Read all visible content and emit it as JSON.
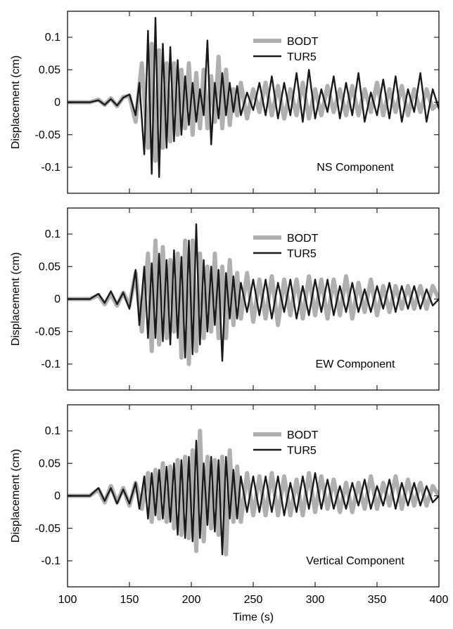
{
  "colors": {
    "BODT": "#b0b0b0",
    "TUR5": "#1a1a1a"
  },
  "chart_data": [
    {
      "type": "line",
      "annotation": "NS Component",
      "ylabel": "Displacement (cm)",
      "xlim": [
        100,
        400
      ],
      "ylim": [
        -0.14,
        0.14
      ],
      "yticks": [
        -0.1,
        -0.05,
        0,
        0.05,
        0.1
      ],
      "ytick_labels": [
        "-0.1",
        "-0.05",
        "0",
        "0.05",
        "0.1"
      ],
      "legend": "top-right",
      "grid": false,
      "series": [
        {
          "name": "BODT",
          "x": [
            100,
            118,
            125,
            130,
            135,
            140,
            145,
            150,
            155,
            160,
            165,
            168,
            171,
            174,
            177,
            180,
            183,
            186,
            189,
            192,
            195,
            198,
            201,
            204,
            207,
            210,
            213,
            216,
            219,
            222,
            225,
            228,
            231,
            234,
            237,
            240,
            245,
            250,
            255,
            260,
            265,
            270,
            275,
            280,
            285,
            290,
            295,
            300,
            305,
            310,
            315,
            320,
            325,
            330,
            335,
            340,
            345,
            350,
            355,
            360,
            365,
            370,
            375,
            380,
            385,
            390,
            395,
            400
          ],
          "y": [
            0,
            0,
            0.004,
            -0.004,
            0.006,
            -0.006,
            0.008,
            0.01,
            -0.03,
            0.06,
            -0.07,
            0.09,
            -0.09,
            0.08,
            -0.07,
            0.06,
            -0.06,
            0.06,
            -0.05,
            0.05,
            -0.04,
            0.06,
            -0.05,
            0.045,
            -0.04,
            0.05,
            -0.04,
            0.04,
            -0.03,
            0.07,
            -0.04,
            0.05,
            -0.035,
            0.02,
            -0.02,
            0.03,
            -0.025,
            0.02,
            -0.015,
            0.03,
            -0.02,
            0.025,
            -0.025,
            0.02,
            -0.02,
            0.03,
            -0.025,
            0.02,
            -0.02,
            0.025,
            -0.015,
            0.02,
            -0.02,
            0.025,
            -0.02,
            0.02,
            -0.015,
            0.03,
            -0.02,
            0.02,
            -0.015,
            0.025,
            -0.02,
            0.02,
            -0.015,
            0.02,
            -0.01,
            0
          ]
        },
        {
          "name": "TUR5",
          "x": [
            100,
            118,
            125,
            130,
            135,
            140,
            145,
            150,
            155,
            158,
            162,
            165,
            168,
            171,
            174,
            177,
            180,
            183,
            186,
            189,
            192,
            195,
            198,
            201,
            204,
            207,
            210,
            213,
            216,
            219,
            222,
            225,
            228,
            231,
            234,
            237,
            240,
            245,
            250,
            255,
            260,
            265,
            270,
            275,
            280,
            285,
            290,
            295,
            300,
            305,
            310,
            315,
            320,
            325,
            330,
            335,
            340,
            345,
            350,
            355,
            360,
            365,
            370,
            375,
            380,
            385,
            390,
            395,
            400
          ],
          "y": [
            0,
            0,
            0.003,
            -0.004,
            0.005,
            -0.005,
            0.007,
            0.012,
            -0.02,
            0.03,
            -0.08,
            0.11,
            -0.11,
            0.13,
            -0.115,
            0.09,
            -0.07,
            0.085,
            -0.06,
            0.065,
            -0.05,
            0.04,
            -0.035,
            0.03,
            -0.03,
            0.02,
            -0.02,
            0.095,
            -0.065,
            0.03,
            -0.025,
            0.045,
            -0.02,
            0.03,
            -0.015,
            0.025,
            -0.02,
            0.015,
            -0.012,
            0.03,
            -0.02,
            0.04,
            -0.025,
            0.03,
            -0.02,
            0.045,
            -0.03,
            0.05,
            -0.025,
            0.02,
            -0.015,
            0.04,
            -0.025,
            0.03,
            -0.02,
            0.045,
            -0.03,
            0.015,
            -0.02,
            0.035,
            -0.025,
            0.04,
            -0.03,
            0.02,
            -0.015,
            0.045,
            -0.03,
            0.02,
            -0.01
          ]
        }
      ]
    },
    {
      "type": "line",
      "annotation": "EW Component",
      "ylabel": "Displacement (cm)",
      "xlim": [
        100,
        400
      ],
      "ylim": [
        -0.14,
        0.14
      ],
      "yticks": [
        -0.1,
        -0.05,
        0,
        0.05,
        0.1
      ],
      "ytick_labels": [
        "-0.1",
        "-0.05",
        "0",
        "0.05",
        "0.1"
      ],
      "legend": "top-right",
      "grid": false,
      "series": [
        {
          "name": "BODT",
          "x": [
            100,
            118,
            125,
            130,
            135,
            140,
            145,
            150,
            155,
            160,
            165,
            168,
            171,
            174,
            177,
            180,
            183,
            186,
            189,
            192,
            195,
            198,
            201,
            204,
            207,
            210,
            213,
            216,
            219,
            222,
            225,
            228,
            231,
            234,
            237,
            240,
            245,
            250,
            255,
            260,
            265,
            270,
            275,
            280,
            285,
            290,
            295,
            300,
            305,
            310,
            315,
            320,
            325,
            330,
            335,
            340,
            345,
            350,
            355,
            360,
            365,
            370,
            375,
            380,
            385,
            390,
            395,
            400
          ],
          "y": [
            0,
            0,
            0.006,
            -0.008,
            0.008,
            -0.01,
            0.01,
            -0.01,
            0.04,
            -0.05,
            0.07,
            -0.08,
            0.09,
            -0.07,
            0.08,
            -0.06,
            0.06,
            -0.05,
            0.07,
            -0.09,
            0.09,
            -0.1,
            0.09,
            -0.08,
            0.07,
            -0.06,
            0.05,
            -0.05,
            0.07,
            -0.06,
            0.05,
            -0.06,
            0.06,
            -0.04,
            0.04,
            -0.03,
            0.04,
            -0.035,
            0.03,
            -0.03,
            0.035,
            -0.04,
            0.03,
            -0.025,
            0.03,
            -0.03,
            0.035,
            -0.025,
            0.03,
            -0.03,
            0.03,
            -0.025,
            0.035,
            -0.03,
            0.025,
            -0.02,
            0.03,
            -0.025,
            0.02,
            -0.02,
            0.02,
            -0.015,
            0.02,
            -0.015,
            0.02,
            -0.015,
            0.02,
            0
          ]
        },
        {
          "name": "TUR5",
          "x": [
            100,
            118,
            125,
            130,
            135,
            140,
            145,
            150,
            155,
            158,
            162,
            165,
            168,
            171,
            174,
            177,
            180,
            183,
            186,
            189,
            192,
            195,
            198,
            201,
            204,
            207,
            210,
            213,
            216,
            219,
            222,
            225,
            228,
            231,
            234,
            237,
            240,
            245,
            250,
            255,
            260,
            265,
            270,
            275,
            280,
            285,
            290,
            295,
            300,
            305,
            310,
            315,
            320,
            325,
            330,
            335,
            340,
            345,
            350,
            355,
            360,
            365,
            370,
            375,
            380,
            385,
            390,
            395,
            400
          ],
          "y": [
            0,
            0,
            0.008,
            -0.006,
            0.012,
            -0.008,
            0.01,
            -0.015,
            0.045,
            -0.04,
            0.05,
            -0.06,
            0.055,
            -0.06,
            0.07,
            -0.065,
            0.06,
            -0.07,
            0.075,
            -0.06,
            0.065,
            -0.09,
            0.09,
            -0.085,
            0.115,
            -0.07,
            0.06,
            -0.05,
            0.05,
            -0.04,
            0.045,
            -0.095,
            0.04,
            -0.03,
            0.035,
            -0.03,
            0.025,
            -0.02,
            0.03,
            -0.025,
            0.03,
            -0.03,
            0.025,
            -0.02,
            0.03,
            -0.03,
            0.02,
            -0.025,
            0.03,
            -0.02,
            0.03,
            -0.025,
            0.02,
            -0.02,
            0.025,
            -0.02,
            0.015,
            -0.02,
            0.02,
            -0.015,
            0.025,
            -0.02,
            0.02,
            -0.015,
            0.02,
            -0.015,
            0.015,
            -0.01,
            0
          ]
        }
      ]
    },
    {
      "type": "line",
      "annotation": "Vertical Component",
      "ylabel": "Displacement (cm)",
      "xlabel": "Time (s)",
      "xlim": [
        100,
        400
      ],
      "ylim": [
        -0.14,
        0.14
      ],
      "xticks": [
        100,
        150,
        200,
        250,
        300,
        350,
        400
      ],
      "xtick_labels": [
        "100",
        "150",
        "200",
        "250",
        "300",
        "350",
        "400"
      ],
      "yticks": [
        -0.1,
        -0.05,
        0,
        0.05,
        0.1
      ],
      "ytick_labels": [
        "-0.1",
        "-0.05",
        "0",
        "0.05",
        "0.1"
      ],
      "legend": "top-right",
      "grid": false,
      "series": [
        {
          "name": "BODT",
          "x": [
            100,
            118,
            125,
            130,
            135,
            140,
            145,
            150,
            155,
            160,
            165,
            168,
            171,
            174,
            177,
            180,
            183,
            186,
            189,
            192,
            195,
            198,
            201,
            204,
            207,
            210,
            213,
            216,
            219,
            222,
            225,
            228,
            231,
            234,
            237,
            240,
            245,
            250,
            255,
            260,
            265,
            270,
            275,
            280,
            285,
            290,
            295,
            300,
            305,
            310,
            315,
            320,
            325,
            330,
            335,
            340,
            345,
            350,
            355,
            360,
            365,
            370,
            375,
            380,
            385,
            390,
            395,
            400
          ],
          "y": [
            0,
            0,
            0.01,
            -0.01,
            0.015,
            -0.01,
            0.012,
            -0.015,
            0.02,
            -0.02,
            0.035,
            -0.04,
            0.04,
            -0.035,
            0.05,
            -0.04,
            0.045,
            -0.05,
            0.055,
            -0.06,
            0.06,
            -0.065,
            0.07,
            -0.085,
            0.1,
            -0.07,
            0.06,
            -0.05,
            0.055,
            -0.06,
            0.06,
            -0.09,
            0.07,
            -0.04,
            0.045,
            -0.04,
            0.035,
            -0.03,
            0.03,
            -0.03,
            0.035,
            -0.03,
            0.03,
            -0.03,
            0.025,
            -0.03,
            0.035,
            -0.025,
            0.03,
            -0.02,
            0.025,
            -0.025,
            0.02,
            -0.025,
            0.02,
            -0.02,
            0.03,
            -0.02,
            0.02,
            -0.015,
            0.03,
            -0.02,
            0.025,
            -0.015,
            0.02,
            -0.015,
            0.015,
            0
          ]
        },
        {
          "name": "TUR5",
          "x": [
            100,
            118,
            125,
            130,
            135,
            140,
            145,
            150,
            155,
            158,
            162,
            165,
            168,
            171,
            174,
            177,
            180,
            183,
            186,
            189,
            192,
            195,
            198,
            201,
            204,
            207,
            210,
            213,
            216,
            219,
            222,
            225,
            228,
            231,
            234,
            237,
            240,
            245,
            250,
            255,
            260,
            265,
            270,
            275,
            280,
            285,
            290,
            295,
            300,
            305,
            310,
            315,
            320,
            325,
            330,
            335,
            340,
            345,
            350,
            355,
            360,
            365,
            370,
            375,
            380,
            385,
            390,
            395,
            400
          ],
          "y": [
            0,
            0,
            0.012,
            -0.008,
            0.012,
            -0.012,
            0.01,
            -0.012,
            0.02,
            -0.02,
            0.03,
            -0.035,
            0.035,
            -0.03,
            0.04,
            -0.035,
            0.045,
            -0.04,
            0.05,
            -0.06,
            0.055,
            -0.065,
            0.06,
            -0.07,
            0.085,
            -0.065,
            0.05,
            -0.045,
            0.06,
            -0.055,
            0.055,
            -0.09,
            0.06,
            -0.035,
            0.04,
            -0.035,
            0.03,
            -0.025,
            0.03,
            -0.025,
            0.03,
            -0.025,
            0.03,
            -0.03,
            0.02,
            -0.025,
            0.03,
            -0.02,
            0.035,
            -0.02,
            0.025,
            -0.02,
            0.015,
            -0.02,
            0.02,
            -0.015,
            0.025,
            -0.02,
            0.015,
            -0.015,
            0.025,
            -0.02,
            0.02,
            -0.015,
            0.02,
            -0.015,
            0.015,
            -0.01,
            0
          ]
        }
      ]
    }
  ]
}
